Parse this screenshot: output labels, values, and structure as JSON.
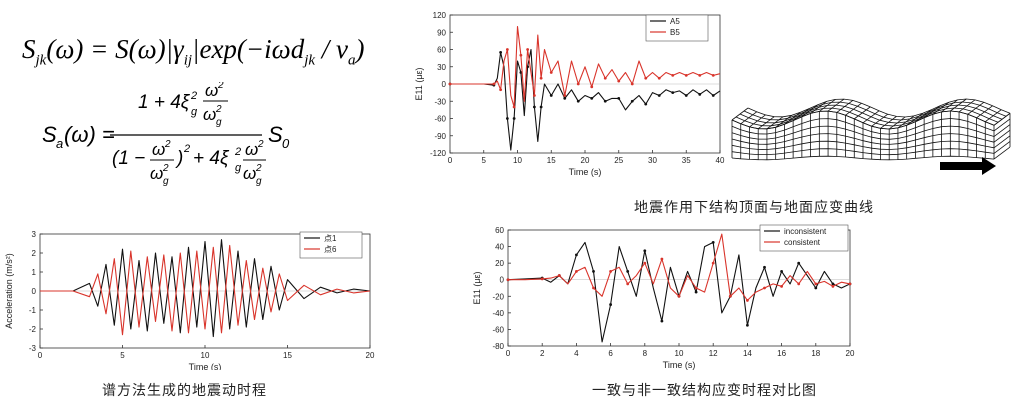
{
  "formulas": {
    "eq1_lhs": "S",
    "eq1_lhs_sub": "jk",
    "eq1_rest": "(ω) = S(ω)|γ",
    "eq1_gamma_sub": "ij",
    "eq1_tail": "|exp(−iωd",
    "eq1_d_sub": "jk",
    "eq1_end": " / v",
    "eq1_v_sub": "a",
    "eq1_close": ")",
    "eq2_lhs": "S",
    "eq2_lhs_sub": "a",
    "eq2_lhs_rest": "(ω) =",
    "eq2_num": "1 + 4ξ",
    "eq2_num_sub": "g",
    "eq2_num_sup": "2",
    "eq2_den_a": "(1 −",
    "eq2_den_b": ")",
    "eq2_den_sup": "2",
    "eq2_den_c": "+ 4ξ",
    "eq2_omega": "ω",
    "eq2_omega_g": "ω",
    "eq2_g": "g",
    "eq2_tail": "S",
    "eq2_tail_sub": "0"
  },
  "captions": {
    "top_right": "地震作用下结构顶面与地面应变曲线",
    "bottom_left": "谱方法生成的地震动时程",
    "bottom_right": "一致与非一致结构应变时程对比图"
  },
  "colors": {
    "black_series": "#111111",
    "red_series": "#d9342b",
    "grid": "#cccccc"
  },
  "chart_data": [
    {
      "id": "accel",
      "type": "line",
      "title": "",
      "xlabel": "Time (s)",
      "ylabel": "Acceleration (m/s²)",
      "xlim": [
        0,
        20
      ],
      "ylim": [
        -3,
        3
      ],
      "xticks": [
        0,
        5,
        10,
        15,
        20
      ],
      "yticks": [
        -3,
        -2,
        -1,
        0,
        1,
        2,
        3
      ],
      "legend_position": "top-right",
      "series": [
        {
          "name": "点1",
          "color": "#111111",
          "x": [
            0,
            2,
            3,
            3.5,
            4,
            4.5,
            5,
            5.5,
            6,
            6.5,
            7,
            7.5,
            8,
            8.5,
            9,
            9.5,
            10,
            10.5,
            11,
            11.5,
            12,
            12.5,
            13,
            13.5,
            14,
            14.5,
            15,
            16,
            17,
            18,
            19,
            20
          ],
          "y": [
            0,
            0,
            0.4,
            -0.8,
            1.4,
            -1.8,
            2.2,
            -2.0,
            1.6,
            -2.1,
            2.0,
            -1.7,
            1.8,
            -2.2,
            2.3,
            -1.9,
            2.6,
            -2.4,
            2.7,
            -2.0,
            2.1,
            -1.9,
            1.7,
            -1.5,
            1.3,
            -1.0,
            0.6,
            -0.4,
            0.2,
            -0.1,
            0.1,
            0
          ]
        },
        {
          "name": "点6",
          "color": "#d9342b",
          "x": [
            0,
            2,
            3,
            3.5,
            4,
            4.5,
            5,
            5.5,
            6,
            6.5,
            7,
            7.5,
            8,
            8.5,
            9,
            9.5,
            10,
            10.5,
            11,
            11.5,
            12,
            12.5,
            13,
            13.5,
            14,
            14.5,
            15,
            16,
            17,
            18,
            19,
            20
          ],
          "y": [
            0,
            0,
            -0.3,
            0.9,
            -1.2,
            1.7,
            -2.3,
            2.1,
            -1.9,
            1.8,
            -1.6,
            1.9,
            -2.1,
            2.0,
            -2.2,
            2.1,
            -2.0,
            2.3,
            -2.2,
            2.4,
            -1.8,
            1.6,
            -1.5,
            1.2,
            -1.1,
            0.9,
            -0.5,
            0.3,
            -0.2,
            0.1,
            -0.1,
            0
          ]
        }
      ]
    },
    {
      "id": "strain_top",
      "type": "line",
      "title": "",
      "xlabel": "Time (s)",
      "ylabel": "E11 (με)",
      "xlim": [
        0,
        40
      ],
      "ylim": [
        -120,
        120
      ],
      "xticks": [
        0,
        5,
        10,
        15,
        20,
        25,
        30,
        35,
        40
      ],
      "yticks": [
        -120,
        -90,
        -60,
        -30,
        0,
        30,
        60,
        90,
        120
      ],
      "legend_position": "top-right",
      "series": [
        {
          "name": "A5",
          "color": "#111111",
          "x": [
            0,
            5,
            6.5,
            7,
            7.5,
            8,
            8.5,
            9,
            9.5,
            10,
            10.5,
            11,
            11.5,
            12,
            12.5,
            13,
            13.5,
            14,
            15,
            16,
            17,
            18,
            19,
            20,
            21,
            22,
            23,
            24,
            25,
            26,
            27,
            28,
            29,
            30,
            31,
            32,
            33,
            34,
            35,
            36,
            37,
            38,
            39,
            40
          ],
          "y": [
            0,
            0,
            -2,
            10,
            55,
            30,
            -60,
            -115,
            -60,
            40,
            20,
            -55,
            30,
            60,
            -40,
            -100,
            -40,
            0,
            -20,
            0,
            -25,
            -10,
            -30,
            -20,
            -25,
            -15,
            -30,
            -25,
            -25,
            -45,
            -30,
            -20,
            -35,
            -15,
            -20,
            -10,
            -15,
            -12,
            -20,
            -10,
            -18,
            -10,
            -20,
            -12
          ]
        },
        {
          "name": "B5",
          "color": "#d9342b",
          "x": [
            0,
            5,
            6.5,
            7,
            7.5,
            8,
            8.5,
            9,
            9.5,
            10,
            10.5,
            11,
            11.5,
            12,
            12.5,
            13,
            13.5,
            14,
            15,
            16,
            17,
            18,
            19,
            20,
            21,
            22,
            23,
            24,
            25,
            26,
            27,
            28,
            29,
            30,
            31,
            32,
            33,
            34,
            35,
            36,
            37,
            38,
            39,
            40
          ],
          "y": [
            0,
            0,
            0,
            5,
            -10,
            40,
            60,
            -20,
            -40,
            100,
            50,
            -30,
            60,
            20,
            -20,
            85,
            10,
            60,
            20,
            40,
            -20,
            40,
            0,
            30,
            -5,
            35,
            10,
            25,
            5,
            20,
            0,
            40,
            10,
            20,
            10,
            20,
            15,
            20,
            15,
            20,
            15,
            20,
            15,
            18
          ]
        }
      ]
    },
    {
      "id": "strain_compare",
      "type": "line",
      "title": "",
      "xlabel": "Time (s)",
      "ylabel": "E11 (με)",
      "xlim": [
        0,
        20
      ],
      "ylim": [
        -80,
        60
      ],
      "xticks": [
        0,
        2,
        4,
        6,
        8,
        10,
        12,
        14,
        16,
        18,
        20
      ],
      "yticks": [
        -80,
        -60,
        -40,
        -20,
        0,
        20,
        40,
        60
      ],
      "legend_position": "top-right",
      "series": [
        {
          "name": "inconsistent",
          "color": "#111111",
          "x": [
            0,
            1,
            2,
            2.5,
            3,
            3.5,
            4,
            4.5,
            5,
            5.5,
            6,
            6.5,
            7,
            7.5,
            8,
            8.5,
            9,
            9.5,
            10,
            10.5,
            11,
            11.5,
            12,
            12.5,
            13,
            13.5,
            14,
            14.5,
            15,
            15.5,
            16,
            16.5,
            17,
            17.5,
            18,
            18.5,
            19,
            19.5,
            20
          ],
          "y": [
            0,
            1,
            2,
            -3,
            5,
            -5,
            30,
            45,
            10,
            -75,
            -30,
            40,
            10,
            -20,
            35,
            -10,
            -50,
            15,
            -20,
            10,
            -15,
            40,
            45,
            -40,
            -20,
            30,
            -55,
            -10,
            15,
            -20,
            10,
            -5,
            20,
            5,
            -10,
            10,
            -5,
            -10,
            -5
          ]
        },
        {
          "name": "consistent",
          "color": "#d9342b",
          "x": [
            0,
            1,
            2,
            2.5,
            3,
            3.5,
            4,
            4.5,
            5,
            5.5,
            6,
            6.5,
            7,
            7.5,
            8,
            8.5,
            9,
            9.5,
            10,
            10.5,
            11,
            11.5,
            12,
            12.5,
            13,
            13.5,
            14,
            14.5,
            15,
            15.5,
            16,
            16.5,
            17,
            17.5,
            18,
            18.5,
            19,
            19.5,
            20
          ],
          "y": [
            0,
            0,
            1,
            2,
            5,
            -5,
            10,
            15,
            -10,
            -20,
            10,
            15,
            -5,
            5,
            20,
            -5,
            25,
            -10,
            -20,
            5,
            -10,
            -15,
            20,
            55,
            -20,
            -10,
            -25,
            -15,
            -10,
            -5,
            -8,
            5,
            -5,
            10,
            -5,
            -2,
            -8,
            -3,
            -5
          ]
        }
      ]
    }
  ],
  "mesh": {
    "arrow_icon": "right-arrow-icon"
  }
}
